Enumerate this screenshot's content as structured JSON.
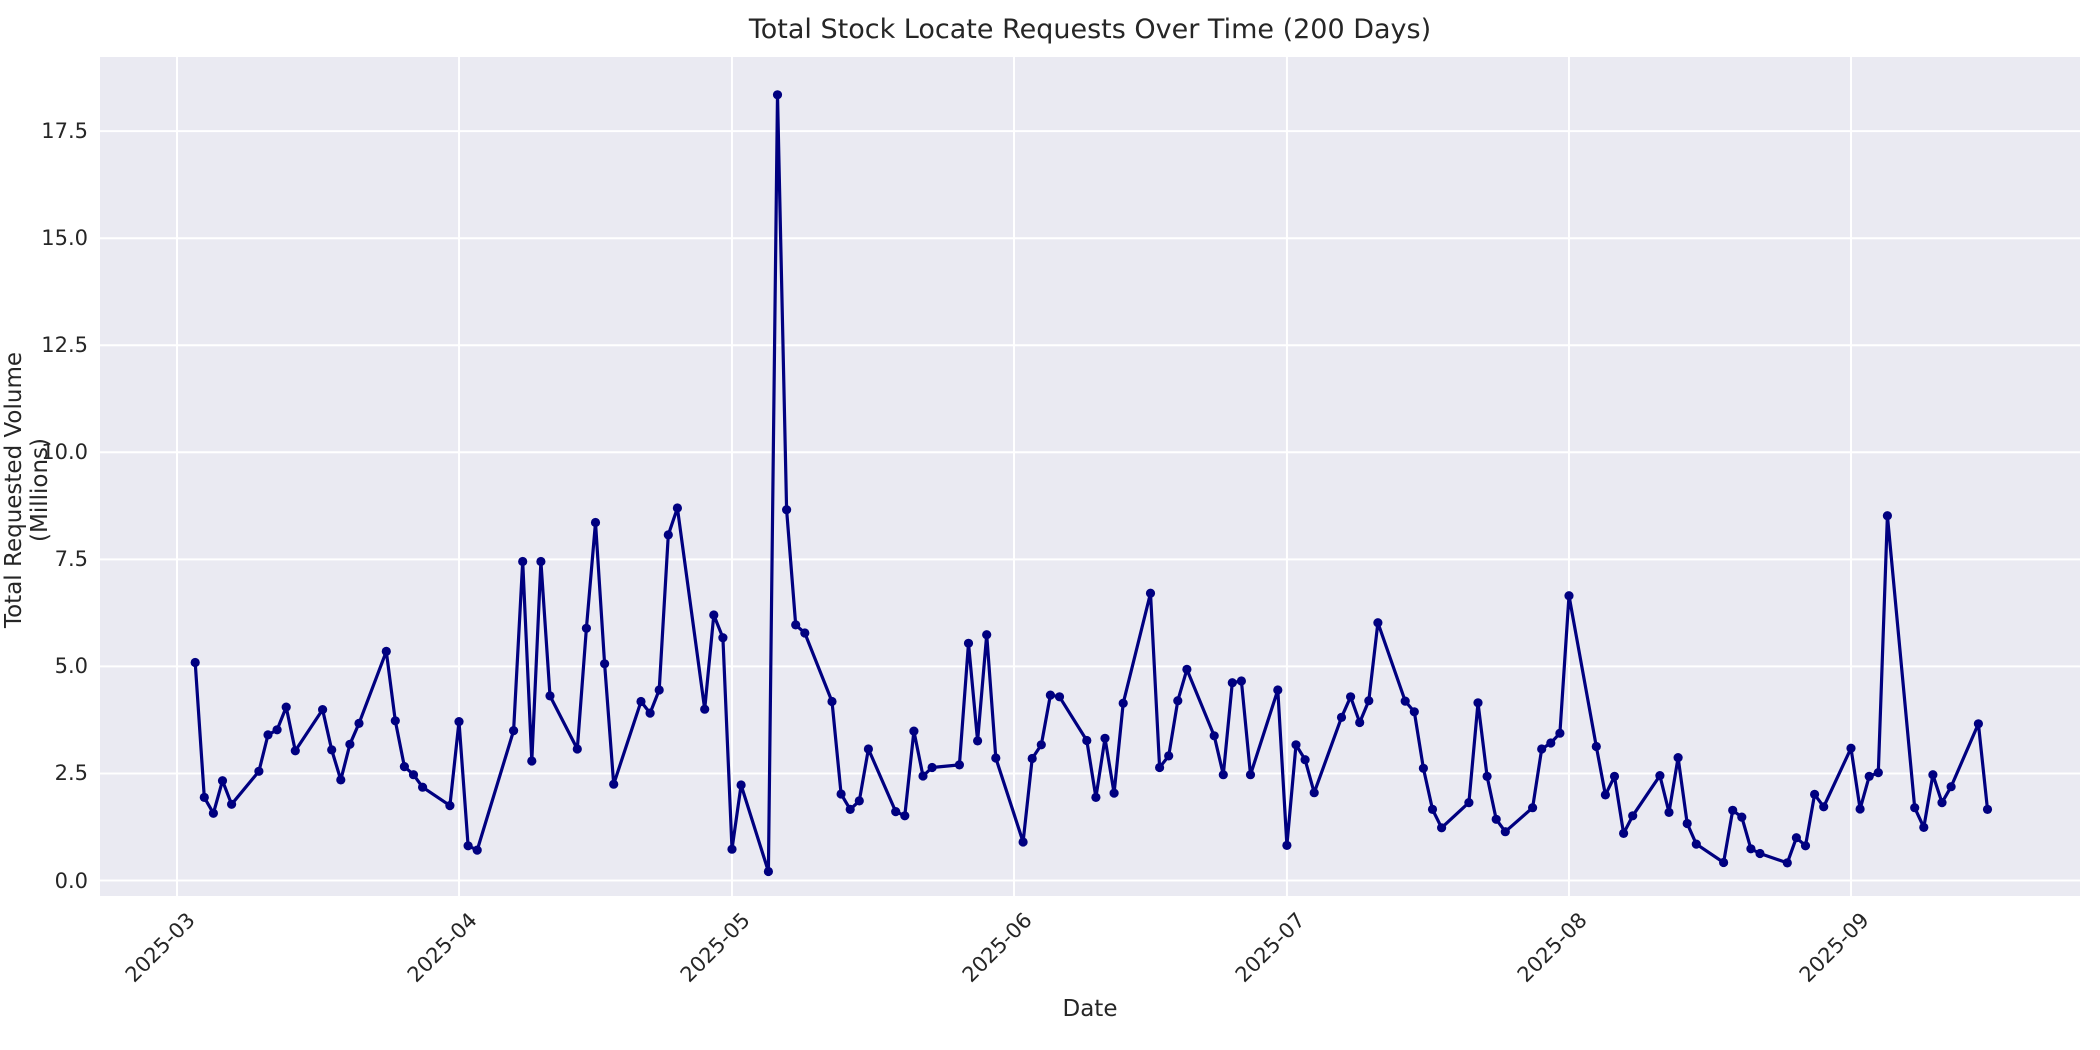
{
  "figure": {
    "title": "Total Stock Locate Requests Over Time (200 Days)",
    "xlabel": "Date",
    "ylabel": "Total Requested Volume (Millions)"
  },
  "chart_data": {
    "type": "line",
    "title": "Total Stock Locate Requests Over Time (200 Days)",
    "xlabel": "Date",
    "ylabel": "Total Requested Volume (Millions)",
    "legend": "none",
    "grid": true,
    "style": "seaborn-darkgrid",
    "plot_bg_color": "#EAEAF2",
    "grid_color": "#FFFFFF",
    "line_color": "#000080",
    "marker": "circle",
    "text_color": "#262626",
    "ylim": [
      -0.4,
      19.2
    ],
    "y_ticks": [
      0.0,
      2.5,
      5.0,
      7.5,
      10.0,
      12.5,
      15.0,
      17.5
    ],
    "y_tick_labels": [
      "0.0",
      "2.5",
      "5.0",
      "7.5",
      "10.0",
      "12.5",
      "15.0",
      "17.5"
    ],
    "x_tick_dates": [
      "2025-03-01",
      "2025-04-01",
      "2025-05-01",
      "2025-06-01",
      "2025-07-01",
      "2025-08-01",
      "2025-09-01"
    ],
    "x_tick_labels": [
      "2025-03",
      "2025-04",
      "2025-05",
      "2025-06",
      "2025-07",
      "2025-08",
      "2025-09"
    ],
    "dates": [
      "2025-03-03",
      "2025-03-04",
      "2025-03-05",
      "2025-03-06",
      "2025-03-07",
      "2025-03-10",
      "2025-03-11",
      "2025-03-12",
      "2025-03-13",
      "2025-03-14",
      "2025-03-17",
      "2025-03-18",
      "2025-03-19",
      "2025-03-20",
      "2025-03-21",
      "2025-03-24",
      "2025-03-25",
      "2025-03-26",
      "2025-03-27",
      "2025-03-28",
      "2025-03-31",
      "2025-04-01",
      "2025-04-02",
      "2025-04-03",
      "2025-04-07",
      "2025-04-08",
      "2025-04-09",
      "2025-04-10",
      "2025-04-11",
      "2025-04-14",
      "2025-04-15",
      "2025-04-16",
      "2025-04-17",
      "2025-04-18",
      "2025-04-21",
      "2025-04-22",
      "2025-04-23",
      "2025-04-24",
      "2025-04-25",
      "2025-04-28",
      "2025-04-29",
      "2025-04-30",
      "2025-05-01",
      "2025-05-02",
      "2025-05-05",
      "2025-05-06",
      "2025-05-07",
      "2025-05-08",
      "2025-05-09",
      "2025-05-12",
      "2025-05-13",
      "2025-05-14",
      "2025-05-15",
      "2025-05-16",
      "2025-05-19",
      "2025-05-20",
      "2025-05-21",
      "2025-05-22",
      "2025-05-23",
      "2025-05-26",
      "2025-05-27",
      "2025-05-28",
      "2025-05-29",
      "2025-05-30",
      "2025-06-02",
      "2025-06-03",
      "2025-06-04",
      "2025-06-05",
      "2025-06-06",
      "2025-06-09",
      "2025-06-10",
      "2025-06-11",
      "2025-06-12",
      "2025-06-13",
      "2025-06-16",
      "2025-06-17",
      "2025-06-18",
      "2025-06-19",
      "2025-06-20",
      "2025-06-23",
      "2025-06-24",
      "2025-06-25",
      "2025-06-26",
      "2025-06-27",
      "2025-06-30",
      "2025-07-01",
      "2025-07-02",
      "2025-07-03",
      "2025-07-04",
      "2025-07-07",
      "2025-07-08",
      "2025-07-09",
      "2025-07-10",
      "2025-07-11",
      "2025-07-14",
      "2025-07-15",
      "2025-07-16",
      "2025-07-17",
      "2025-07-18",
      "2025-07-21",
      "2025-07-22",
      "2025-07-23",
      "2025-07-24",
      "2025-07-25",
      "2025-07-28",
      "2025-07-29",
      "2025-07-30",
      "2025-07-31",
      "2025-08-01",
      "2025-08-04",
      "2025-08-05",
      "2025-08-06",
      "2025-08-07",
      "2025-08-08",
      "2025-08-11",
      "2025-08-12",
      "2025-08-13",
      "2025-08-14",
      "2025-08-15",
      "2025-08-18",
      "2025-08-19",
      "2025-08-20",
      "2025-08-21",
      "2025-08-22",
      "2025-08-25",
      "2025-08-26",
      "2025-08-27",
      "2025-08-28",
      "2025-08-29",
      "2025-09-01",
      "2025-09-02",
      "2025-09-03",
      "2025-09-04",
      "2025-09-05",
      "2025-09-08",
      "2025-09-09",
      "2025-09-10",
      "2025-09-11",
      "2025-09-12",
      "2025-09-15",
      "2025-09-16"
    ],
    "values": [
      5.09,
      1.94,
      1.57,
      2.33,
      1.78,
      2.55,
      3.4,
      3.52,
      4.05,
      3.03,
      3.99,
      3.05,
      2.35,
      3.18,
      3.67,
      5.35,
      3.73,
      2.66,
      2.47,
      2.18,
      1.75,
      3.71,
      0.81,
      0.71,
      3.5,
      7.45,
      2.79,
      7.45,
      4.31,
      3.07,
      5.89,
      8.36,
      5.06,
      2.25,
      4.18,
      3.91,
      4.45,
      8.07,
      8.7,
      4.0,
      6.2,
      5.67,
      0.73,
      2.23,
      0.21,
      18.35,
      8.66,
      5.97,
      5.78,
      4.18,
      2.02,
      1.66,
      1.86,
      3.07,
      1.61,
      1.51,
      3.49,
      2.44,
      2.64,
      2.7,
      5.54,
      3.26,
      5.74,
      2.86,
      0.9,
      2.85,
      3.17,
      4.33,
      4.29,
      3.27,
      1.94,
      3.32,
      2.04,
      4.14,
      6.71,
      2.64,
      2.91,
      4.2,
      4.93,
      3.38,
      2.47,
      4.62,
      4.66,
      2.47,
      4.45,
      0.82,
      3.17,
      2.82,
      2.05,
      3.81,
      4.29,
      3.69,
      4.2,
      6.02,
      4.19,
      3.94,
      2.62,
      1.66,
      1.23,
      1.82,
      4.15,
      2.43,
      1.43,
      1.14,
      1.7,
      3.07,
      3.21,
      3.44,
      6.65,
      3.13,
      2.0,
      2.43,
      1.1,
      1.51,
      2.45,
      1.59,
      2.87,
      1.33,
      0.85,
      0.42,
      1.64,
      1.48,
      0.74,
      0.63,
      0.41,
      1.0,
      0.81,
      2.01,
      1.72,
      3.09,
      1.67,
      2.43,
      2.52,
      8.52,
      1.7,
      1.24,
      2.47,
      1.82,
      2.19,
      3.66,
      1.66
    ]
  }
}
